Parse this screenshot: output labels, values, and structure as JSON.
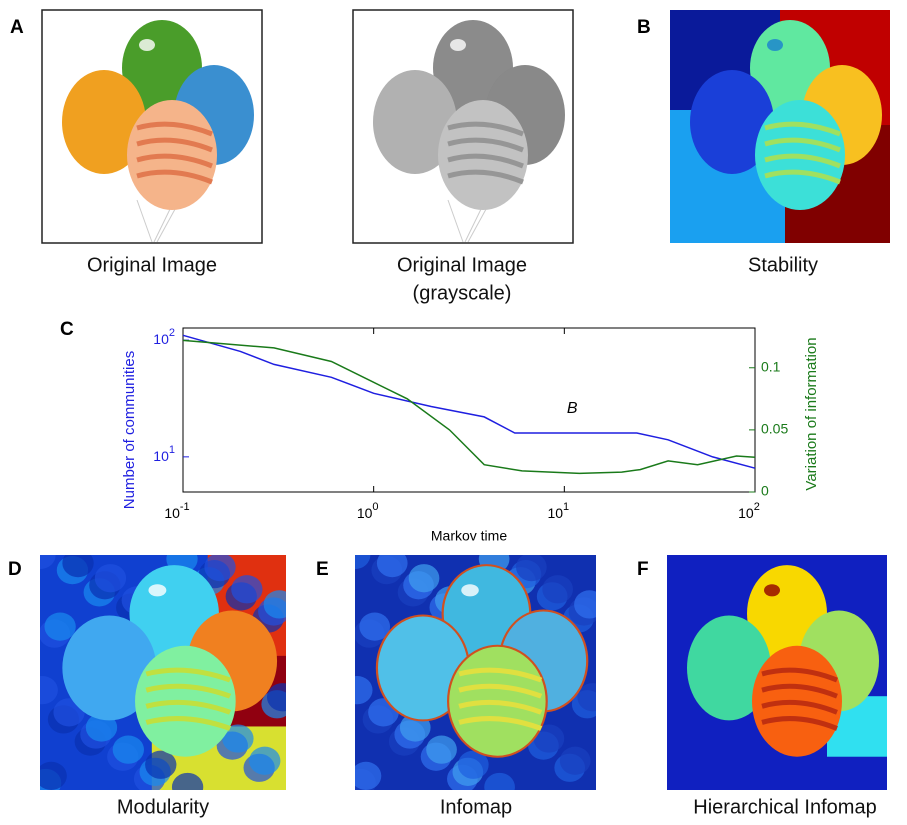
{
  "panels": [
    {
      "letter": "A",
      "caption": "Original Image"
    },
    {
      "caption_lines": [
        "Original Image",
        "(grayscale)"
      ]
    },
    {
      "letter": "B",
      "caption": "Stability"
    },
    {
      "letter": "C"
    },
    {
      "letter": "D",
      "caption": "Modularity"
    },
    {
      "letter": "E",
      "caption": "Infomap"
    },
    {
      "letter": "F",
      "caption": "Hierarchical Infomap"
    }
  ],
  "chart_data": {
    "type": "line",
    "xlabel": "Markov time",
    "ylabel": "Number of communities",
    "y2label": "Variation of information",
    "log_x": true,
    "log_y": true,
    "xlim": [
      0.1,
      100
    ],
    "xticks": [
      {
        "value": 0.1,
        "label": "10^-1"
      },
      {
        "value": 1,
        "label": "10^0"
      },
      {
        "value": 10,
        "label": "10^1"
      },
      {
        "value": 100,
        "label": "10^2"
      }
    ],
    "ylim": [
      5,
      127
    ],
    "yticks": [
      {
        "value": 10,
        "label": "10^1"
      },
      {
        "value": 100,
        "label": "10^2"
      }
    ],
    "y2lim": [
      0,
      0.132
    ],
    "y2ticks": [
      0,
      0.05,
      0.1
    ],
    "series": [
      {
        "color": "#1f1fe0",
        "x": [
          0.1,
          0.2,
          0.3,
          0.6,
          1,
          2,
          3.8,
          5.5,
          10,
          24,
          35,
          60,
          100
        ],
        "values": [
          110,
          80,
          62,
          48,
          35,
          27,
          22,
          16,
          16,
          16,
          14,
          10,
          8
        ]
      },
      {
        "color": "#1a7a1a",
        "axis": "y2",
        "x": [
          0.1,
          0.3,
          0.6,
          1.5,
          2.5,
          3.8,
          6,
          12,
          20,
          25,
          35,
          50,
          80,
          100
        ],
        "values": [
          0.122,
          0.116,
          0.105,
          0.075,
          0.05,
          0.022,
          0.017,
          0.015,
          0.016,
          0.018,
          0.025,
          0.022,
          0.029,
          0.028
        ]
      }
    ],
    "annotations": [
      {
        "text": "B",
        "x": 11,
        "y": 22
      }
    ]
  }
}
